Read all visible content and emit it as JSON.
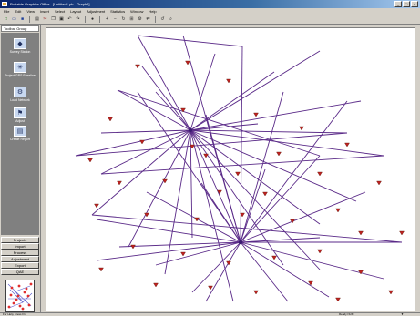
{
  "titlebar": {
    "title": "Portable Graphics Office - [Untitled1.pb - Graph1]",
    "min": "_",
    "max": "□",
    "close": "×"
  },
  "menu": [
    "File",
    "Edit",
    "View",
    "Insert",
    "Select",
    "Layout",
    "Adjustment",
    "Statistics",
    "Window",
    "Help"
  ],
  "toolbar_icons": [
    "new-icon",
    "open-icon",
    "save-icon",
    "print-icon",
    "cut-icon",
    "copy-icon",
    "paste-icon",
    "undo-icon",
    "redo-icon",
    "pointer-icon",
    "zoom-in-icon",
    "zoom-out-icon",
    "rotate-icon",
    "grid-icon",
    "settings-icon",
    "flip-icon",
    "refresh-icon",
    "search-icon"
  ],
  "sidebar": {
    "header": "Toolbar Group",
    "tools": [
      {
        "label": "Survey Station",
        "icon": "station-icon",
        "glyph": "◆"
      },
      {
        "label": "Project GPS Baseline",
        "icon": "baseline-icon",
        "glyph": "✳"
      },
      {
        "label": "Load Network",
        "icon": "network-icon",
        "glyph": "⚙"
      },
      {
        "label": "Adjust",
        "icon": "adjust-icon",
        "glyph": "⚑"
      },
      {
        "label": "Create Report",
        "icon": "report-icon",
        "glyph": "▤"
      }
    ],
    "sections": [
      "Projects",
      "Import",
      "Process",
      "Adjustment",
      "Export",
      "QAE"
    ]
  },
  "status": {
    "left": "For Help, press F1",
    "right": "Ready   NUM",
    "arrow": "▼"
  }
}
